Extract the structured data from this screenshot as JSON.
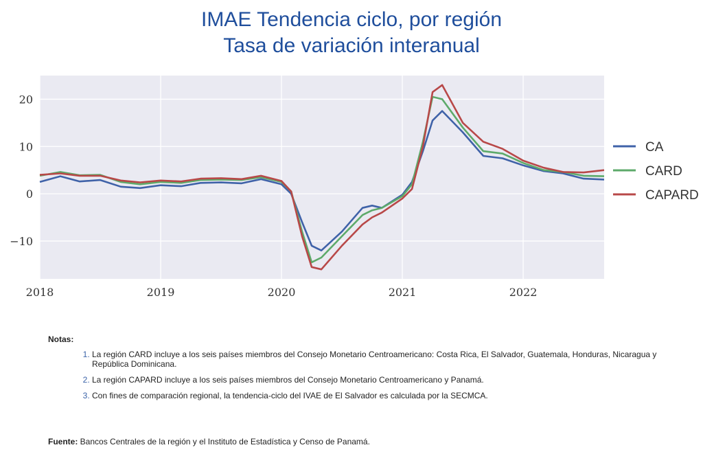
{
  "title_line1": "IMAE Tendencia ciclo, por región",
  "title_line2": "Tasa de variación interanual",
  "chart_data": {
    "type": "line",
    "x_ticks": [
      2018,
      2019,
      2020,
      2021,
      2022
    ],
    "x_range": [
      2018.0,
      2022.67
    ],
    "ylim": [
      -18,
      25
    ],
    "y_ticks": [
      -10,
      0,
      10,
      20
    ],
    "y_tick_labels": [
      "−10",
      "0",
      "10",
      "20"
    ],
    "grid": true,
    "legend_position": "right",
    "series": [
      {
        "name": "CA",
        "color": "#3f62a8",
        "x": [
          2018.0,
          2018.17,
          2018.33,
          2018.5,
          2018.67,
          2018.83,
          2019.0,
          2019.17,
          2019.33,
          2019.5,
          2019.67,
          2019.83,
          2020.0,
          2020.08,
          2020.17,
          2020.25,
          2020.33,
          2020.5,
          2020.67,
          2020.75,
          2020.83,
          2021.0,
          2021.08,
          2021.17,
          2021.25,
          2021.33,
          2021.5,
          2021.67,
          2021.83,
          2022.0,
          2022.17,
          2022.33,
          2022.5,
          2022.67
        ],
        "y": [
          2.5,
          3.7,
          2.6,
          2.9,
          1.5,
          1.2,
          1.8,
          1.6,
          2.3,
          2.4,
          2.2,
          3.1,
          2.0,
          0.0,
          -6.0,
          -11.0,
          -12.0,
          -8.0,
          -3.0,
          -2.5,
          -3.0,
          -0.2,
          2.5,
          9.0,
          15.5,
          17.5,
          13.0,
          8.0,
          7.5,
          6.0,
          4.8,
          4.3,
          3.2,
          3.0
        ]
      },
      {
        "name": "CARD",
        "color": "#5daa6a",
        "x": [
          2018.0,
          2018.17,
          2018.33,
          2018.5,
          2018.67,
          2018.83,
          2019.0,
          2019.17,
          2019.33,
          2019.5,
          2019.67,
          2019.83,
          2020.0,
          2020.08,
          2020.17,
          2020.25,
          2020.33,
          2020.5,
          2020.67,
          2020.75,
          2020.83,
          2021.0,
          2021.08,
          2021.17,
          2021.25,
          2021.33,
          2021.5,
          2021.67,
          2021.83,
          2022.0,
          2022.17,
          2022.33,
          2022.5,
          2022.67
        ],
        "y": [
          3.8,
          4.6,
          3.9,
          4.0,
          2.5,
          2.0,
          2.5,
          2.3,
          2.9,
          3.0,
          2.9,
          3.5,
          2.5,
          0.5,
          -8.0,
          -14.5,
          -13.5,
          -9.0,
          -4.5,
          -3.5,
          -3.0,
          -0.5,
          2.0,
          11.0,
          20.5,
          20.0,
          14.0,
          9.0,
          8.5,
          6.5,
          5.0,
          4.6,
          3.8,
          3.7
        ]
      },
      {
        "name": "CAPARD",
        "color": "#b84848",
        "x": [
          2018.0,
          2018.17,
          2018.33,
          2018.5,
          2018.67,
          2018.83,
          2019.0,
          2019.17,
          2019.33,
          2019.5,
          2019.67,
          2019.83,
          2020.0,
          2020.08,
          2020.17,
          2020.25,
          2020.33,
          2020.5,
          2020.67,
          2020.75,
          2020.83,
          2021.0,
          2021.08,
          2021.17,
          2021.25,
          2021.33,
          2021.5,
          2021.67,
          2021.83,
          2022.0,
          2022.17,
          2022.33,
          2022.5,
          2022.67
        ],
        "y": [
          4.0,
          4.3,
          3.8,
          3.8,
          2.8,
          2.4,
          2.8,
          2.6,
          3.2,
          3.3,
          3.1,
          3.8,
          2.7,
          0.5,
          -9.0,
          -15.5,
          -16.0,
          -11.0,
          -6.5,
          -5.0,
          -4.0,
          -1.0,
          1.0,
          10.0,
          21.5,
          23.0,
          15.0,
          11.0,
          9.5,
          7.0,
          5.5,
          4.6,
          4.5,
          5.0
        ]
      }
    ]
  },
  "notes": {
    "heading": "Notas:",
    "items": [
      {
        "num": "1.",
        "text": "La región CARD incluye a los seis países miembros del Consejo Monetario Centroamericano: Costa Rica, El Salvador, Guatemala, Honduras, Nicaragua y República Dominicana."
      },
      {
        "num": "2.",
        "text": "La región CAPARD incluye a los seis países miembros del Consejo Monetario Centroamericano y Panamá."
      },
      {
        "num": "3.",
        "text": "Con fines de comparación regional, la tendencia-ciclo del IVAE de El Salvador es calculada por la SECMCA."
      }
    ]
  },
  "source": {
    "label": "Fuente:",
    "text": " Bancos Centrales de la región y el Instituto de Estadística y Censo de Panamá."
  }
}
